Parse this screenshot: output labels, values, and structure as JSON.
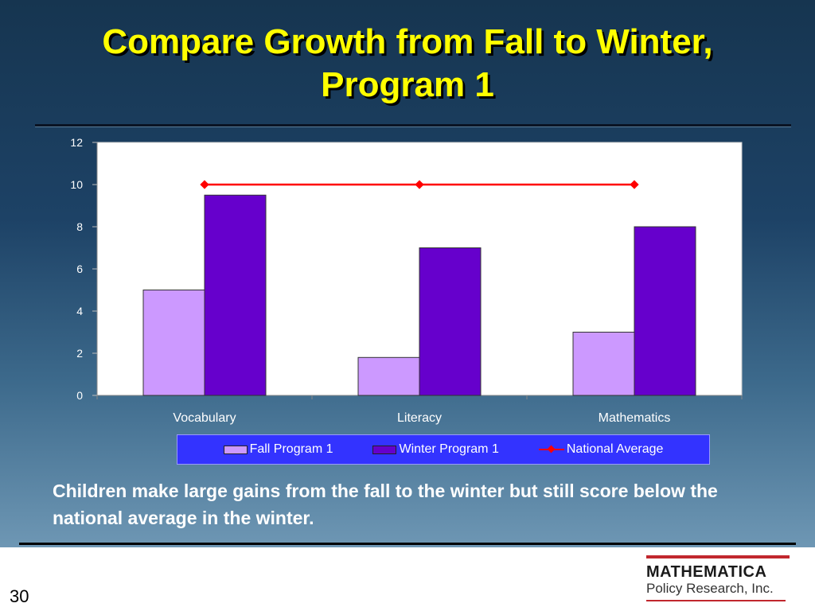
{
  "slide": {
    "title": "Compare Growth from Fall to Winter,\nProgram 1",
    "caption": "Children make large gains from the fall to the winter but still score below the national average in the winter.",
    "page_number": "30",
    "logo": {
      "name": "MATHEMATICA",
      "subtitle": "Policy Research, Inc."
    }
  },
  "colors": {
    "title": "#ffff00",
    "fall": "#cc99ff",
    "winter": "#6600cc",
    "national": "#ff0000",
    "legend_bg": "#3333ff",
    "plot_bg": "#ffffff"
  },
  "chart_data": {
    "type": "bar",
    "categories": [
      "Vocabulary",
      "Literacy",
      "Mathematics"
    ],
    "series": [
      {
        "name": "Fall Program 1",
        "type": "bar",
        "values": [
          5,
          1.8,
          3
        ]
      },
      {
        "name": "Winter Program 1",
        "type": "bar",
        "values": [
          9.5,
          7,
          8
        ]
      },
      {
        "name": "National Average",
        "type": "line",
        "values": [
          10,
          10,
          10
        ]
      }
    ],
    "ylim": [
      0,
      12
    ],
    "yticks": [
      0,
      2,
      4,
      6,
      8,
      10,
      12
    ],
    "grid": false,
    "legend": "bottom"
  }
}
